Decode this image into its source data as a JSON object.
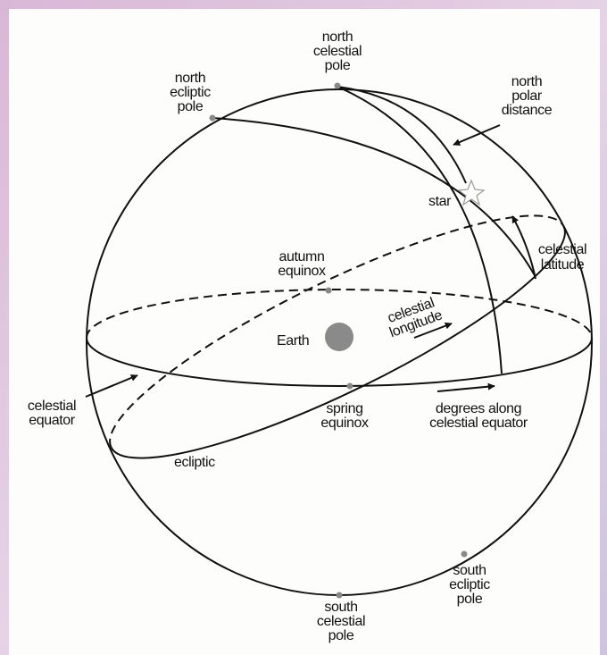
{
  "labels": [
    {
      "lines": [
        "north",
        "celestial",
        "pole"
      ]
    },
    {
      "lines": [
        "north",
        "ecliptic",
        "pole"
      ]
    },
    {
      "lines": [
        "north",
        "polar",
        "distance"
      ]
    },
    {
      "lines": [
        "star"
      ]
    },
    {
      "lines": [
        "celestial",
        "latitude"
      ]
    },
    {
      "lines": [
        "autumn",
        "equinox"
      ]
    },
    {
      "lines": [
        "celestial",
        "longitude"
      ]
    },
    {
      "lines": [
        "Earth"
      ]
    },
    {
      "lines": [
        "celestial",
        "equator"
      ]
    },
    {
      "lines": [
        "spring",
        "equinox"
      ]
    },
    {
      "lines": [
        "degrees along",
        "celestial equator"
      ]
    },
    {
      "lines": [
        "ecliptic"
      ]
    },
    {
      "lines": [
        "south",
        "ecliptic",
        "pole"
      ]
    },
    {
      "lines": [
        "south",
        "celestial",
        "pole"
      ]
    }
  ]
}
